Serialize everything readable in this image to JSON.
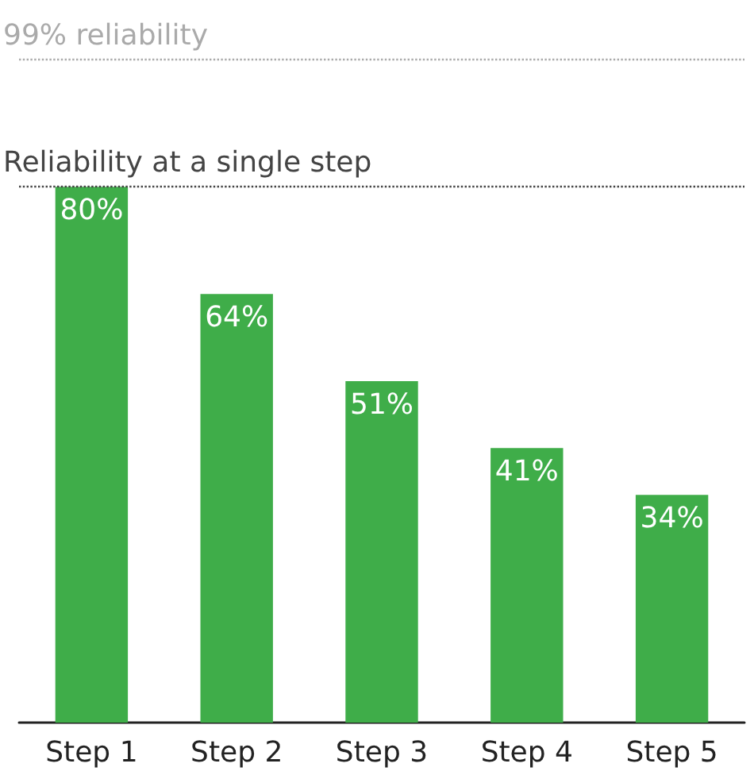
{
  "chart_data": {
    "type": "bar",
    "categories": [
      "Step 1",
      "Step 2",
      "Step 3",
      "Step 4",
      "Step 5"
    ],
    "values": [
      80,
      64,
      51,
      41,
      34
    ],
    "value_labels": [
      "80%",
      "64%",
      "51%",
      "41%",
      "34%"
    ],
    "color": "#3fad49",
    "tick_labels": "x",
    "ref_lines": [
      {
        "axis": "y",
        "value": 99,
        "label": "99% reliability",
        "color": "#aaaaaa",
        "line_style": "dotted"
      },
      {
        "axis": "y",
        "value": 80,
        "label": "Reliability at a single step",
        "color": "#444444",
        "line_style": "dotted"
      }
    ]
  }
}
